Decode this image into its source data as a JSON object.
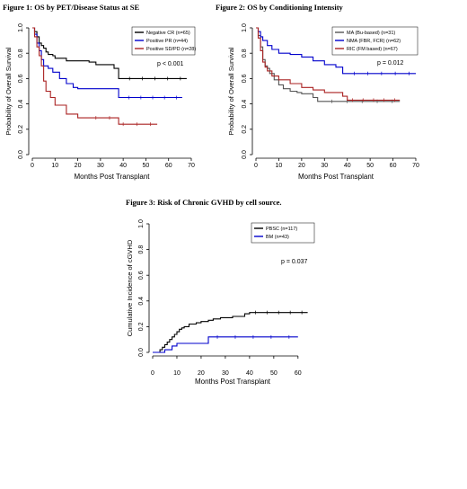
{
  "figures": [
    {
      "title": "Figure 1: OS by PET/Disease Status at SE",
      "chart_data": {
        "type": "line",
        "xlabel": "Months Post Transplant",
        "ylabel": "Probability of Overall Survival",
        "xlim": [
          0,
          70
        ],
        "ylim": [
          0,
          1.0
        ],
        "xticks": [
          "0",
          "10",
          "20",
          "30",
          "40",
          "50",
          "60",
          "70"
        ],
        "yticks": [
          "0.0",
          "0.2",
          "0.4",
          "0.6",
          "0.8",
          "1.0"
        ],
        "annotation": "p < 0.001",
        "legend_position": "top-right",
        "series": [
          {
            "name": "Negative CR (n=65)",
            "color": "#000000",
            "x": [
              0,
              1,
              2,
              3,
              4,
              5,
              6,
              7,
              9,
              10,
              12,
              15,
              16,
              20,
              25,
              28,
              36,
              38,
              40,
              45,
              55,
              68
            ],
            "y": [
              1.0,
              0.97,
              0.93,
              0.88,
              0.86,
              0.84,
              0.81,
              0.79,
              0.78,
              0.76,
              0.76,
              0.74,
              0.74,
              0.74,
              0.73,
              0.71,
              0.68,
              0.6,
              0.6,
              0.6,
              0.6,
              0.6
            ]
          },
          {
            "name": "Positive PR (n=44)",
            "color": "#0000cc",
            "x": [
              0,
              1,
              2,
              3,
              4,
              5,
              7,
              9,
              12,
              15,
              18,
              20,
              25,
              30,
              35,
              38,
              40,
              45,
              55,
              66
            ],
            "y": [
              1.0,
              0.95,
              0.88,
              0.82,
              0.75,
              0.7,
              0.68,
              0.65,
              0.6,
              0.56,
              0.53,
              0.52,
              0.52,
              0.52,
              0.52,
              0.45,
              0.45,
              0.45,
              0.45,
              0.45
            ]
          },
          {
            "name": "Positive SD/PD (n=28)",
            "color": "#aa2222",
            "x": [
              0,
              1,
              2,
              3,
              4,
              5,
              6,
              8,
              10,
              12,
              15,
              20,
              25,
              38,
              45,
              55
            ],
            "y": [
              1.0,
              0.93,
              0.85,
              0.78,
              0.7,
              0.58,
              0.5,
              0.45,
              0.39,
              0.39,
              0.32,
              0.29,
              0.29,
              0.24,
              0.24,
              0.24
            ]
          }
        ]
      }
    },
    {
      "title": "Figure 2: OS by Conditioning Intensity",
      "chart_data": {
        "type": "line",
        "xlabel": "Months Post Transplant",
        "ylabel": "Probability of Overall Survival",
        "xlim": [
          0,
          70
        ],
        "ylim": [
          0,
          1.0
        ],
        "xticks": [
          "0",
          "10",
          "20",
          "30",
          "40",
          "50",
          "60",
          "70"
        ],
        "yticks": [
          "0.0",
          "0.2",
          "0.4",
          "0.6",
          "0.8",
          "1.0"
        ],
        "annotation": "p = 0.012",
        "legend_position": "top-right",
        "series": [
          {
            "name": "MA (Bu-based) (n=31)",
            "color": "#555555",
            "x": [
              0,
              1,
              2,
              3,
              4,
              5,
              6,
              8,
              10,
              12,
              15,
              18,
              20,
              25,
              27,
              30,
              40,
              50,
              63
            ],
            "y": [
              1.0,
              0.94,
              0.85,
              0.75,
              0.7,
              0.68,
              0.64,
              0.59,
              0.55,
              0.52,
              0.5,
              0.49,
              0.48,
              0.45,
              0.42,
              0.42,
              0.42,
              0.42,
              0.42
            ]
          },
          {
            "name": "NMA (FBR, FCR) (n=62)",
            "color": "#0000cc",
            "x": [
              0,
              1,
              2,
              3,
              5,
              7,
              10,
              15,
              20,
              25,
              30,
              35,
              38,
              40,
              50,
              60,
              70
            ],
            "y": [
              1.0,
              0.97,
              0.93,
              0.9,
              0.86,
              0.83,
              0.8,
              0.79,
              0.77,
              0.74,
              0.71,
              0.69,
              0.64,
              0.64,
              0.64,
              0.64,
              0.64
            ]
          },
          {
            "name": "RIC (FM based) (n=67)",
            "color": "#aa2222",
            "x": [
              0,
              1,
              2,
              3,
              4,
              5,
              7,
              10,
              15,
              20,
              25,
              30,
              38,
              40,
              45,
              55,
              63
            ],
            "y": [
              1.0,
              0.92,
              0.82,
              0.73,
              0.69,
              0.66,
              0.62,
              0.59,
              0.56,
              0.53,
              0.51,
              0.49,
              0.46,
              0.43,
              0.43,
              0.43,
              0.43
            ]
          }
        ]
      }
    },
    {
      "title": "Figure 3: Risk of Chronic GVHD by cell source.",
      "chart_data": {
        "type": "line",
        "xlabel": "Months Post Transplant",
        "ylabel": "Cumulative Incidence of cGVHD",
        "xlim": [
          0,
          66
        ],
        "ylim": [
          0,
          1.0
        ],
        "xticks": [
          "0",
          "10",
          "20",
          "30",
          "40",
          "50",
          "60"
        ],
        "yticks": [
          "0.0",
          "0.2",
          "0.4",
          "0.6",
          "0.8",
          "1.0"
        ],
        "annotation": "p = 0.037",
        "legend_position": "top-right",
        "series": [
          {
            "name": "PBSC (n=117)",
            "color": "#000000",
            "x": [
              0,
              3,
              4,
              5,
              6,
              7,
              8,
              9,
              10,
              11,
              12,
              13,
              15,
              18,
              20,
              23,
              25,
              28,
              33,
              38,
              40,
              45,
              55,
              64
            ],
            "y": [
              0,
              0.02,
              0.04,
              0.06,
              0.08,
              0.1,
              0.12,
              0.14,
              0.16,
              0.18,
              0.19,
              0.2,
              0.22,
              0.23,
              0.24,
              0.25,
              0.26,
              0.27,
              0.28,
              0.3,
              0.31,
              0.31,
              0.31,
              0.31
            ]
          },
          {
            "name": "BM (n=43)",
            "color": "#0000cc",
            "x": [
              0,
              5,
              8,
              10,
              12,
              23,
              25,
              40,
              60
            ],
            "y": [
              0,
              0.02,
              0.05,
              0.07,
              0.07,
              0.12,
              0.12,
              0.12,
              0.12
            ]
          }
        ]
      }
    }
  ]
}
